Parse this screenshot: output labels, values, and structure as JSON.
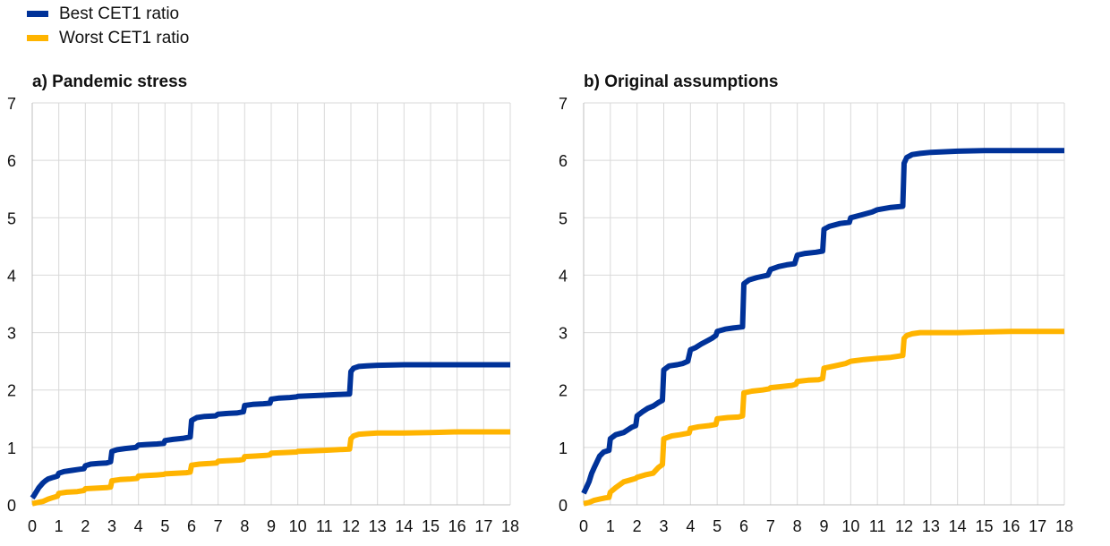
{
  "legend": {
    "items": [
      {
        "label": "Best CET1 ratio",
        "color": "#003299"
      },
      {
        "label": "Worst CET1 ratio",
        "color": "#ffb400"
      }
    ]
  },
  "chart_data": [
    {
      "type": "line",
      "title": "a) Pandemic stress",
      "xlim": [
        0,
        18
      ],
      "ylim": [
        0,
        7
      ],
      "xticks": [
        0,
        1,
        2,
        3,
        4,
        5,
        6,
        7,
        8,
        9,
        10,
        11,
        12,
        13,
        14,
        15,
        16,
        17,
        18
      ],
      "yticks": [
        0,
        1,
        2,
        3,
        4,
        5,
        6,
        7
      ],
      "grid": true,
      "legend_position": "top-left",
      "series": [
        {
          "name": "Best CET1 ratio",
          "color": "#003299",
          "x": [
            0,
            0.05,
            0.25,
            0.4,
            0.5,
            0.6,
            0.8,
            0.95,
            1.0,
            1.2,
            1.5,
            1.8,
            1.95,
            2.0,
            2.2,
            2.5,
            2.8,
            2.95,
            3.0,
            3.2,
            3.5,
            3.9,
            4.0,
            4.3,
            4.7,
            4.95,
            5.0,
            5.3,
            5.7,
            5.95,
            6.0,
            6.2,
            6.5,
            6.9,
            7.0,
            7.3,
            7.7,
            7.95,
            8.0,
            8.3,
            8.7,
            8.95,
            9.0,
            9.3,
            9.7,
            9.95,
            10.0,
            10.5,
            11.0,
            11.5,
            11.95,
            12.0,
            12.1,
            12.3,
            12.6,
            13.0,
            14.0,
            15.0,
            16.0,
            17.0,
            18.0
          ],
          "y": [
            0.12,
            0.15,
            0.3,
            0.38,
            0.42,
            0.45,
            0.48,
            0.5,
            0.55,
            0.58,
            0.6,
            0.62,
            0.63,
            0.68,
            0.71,
            0.72,
            0.73,
            0.75,
            0.93,
            0.96,
            0.98,
            1.0,
            1.04,
            1.05,
            1.06,
            1.07,
            1.12,
            1.14,
            1.16,
            1.18,
            1.47,
            1.52,
            1.54,
            1.55,
            1.58,
            1.59,
            1.6,
            1.62,
            1.73,
            1.75,
            1.76,
            1.77,
            1.84,
            1.86,
            1.87,
            1.88,
            1.89,
            1.9,
            1.91,
            1.92,
            1.93,
            2.32,
            2.38,
            2.41,
            2.42,
            2.43,
            2.44,
            2.44,
            2.44,
            2.44,
            2.44
          ]
        },
        {
          "name": "Worst CET1 ratio",
          "color": "#ffb400",
          "x": [
            0,
            0.2,
            0.4,
            0.6,
            0.8,
            0.95,
            1.0,
            1.3,
            1.7,
            1.95,
            2.0,
            2.4,
            2.8,
            2.95,
            3.0,
            3.3,
            3.7,
            3.95,
            4.0,
            4.3,
            4.7,
            4.95,
            5.0,
            5.4,
            5.8,
            5.95,
            6.0,
            6.3,
            6.7,
            6.95,
            7.0,
            7.4,
            7.8,
            7.95,
            8.0,
            8.4,
            8.8,
            8.95,
            9.0,
            9.5,
            9.95,
            10.0,
            10.5,
            11.0,
            11.5,
            11.95,
            12.0,
            12.1,
            12.3,
            12.6,
            13.0,
            14.0,
            15.0,
            16.0,
            17.0,
            18.0
          ],
          "y": [
            0.02,
            0.04,
            0.06,
            0.1,
            0.13,
            0.15,
            0.2,
            0.22,
            0.23,
            0.25,
            0.28,
            0.29,
            0.3,
            0.31,
            0.42,
            0.44,
            0.45,
            0.46,
            0.5,
            0.51,
            0.52,
            0.53,
            0.54,
            0.55,
            0.56,
            0.57,
            0.69,
            0.71,
            0.72,
            0.73,
            0.76,
            0.77,
            0.78,
            0.79,
            0.84,
            0.85,
            0.86,
            0.87,
            0.9,
            0.91,
            0.92,
            0.93,
            0.94,
            0.95,
            0.96,
            0.97,
            1.15,
            1.2,
            1.23,
            1.24,
            1.25,
            1.25,
            1.26,
            1.27,
            1.27,
            1.27
          ]
        }
      ]
    },
    {
      "type": "line",
      "title": "b) Original assumptions",
      "xlim": [
        0,
        18
      ],
      "ylim": [
        0,
        7
      ],
      "xticks": [
        0,
        1,
        2,
        3,
        4,
        5,
        6,
        7,
        8,
        9,
        10,
        11,
        12,
        13,
        14,
        15,
        16,
        17,
        18
      ],
      "yticks": [
        0,
        1,
        2,
        3,
        4,
        5,
        6,
        7
      ],
      "grid": true,
      "series": [
        {
          "name": "Best CET1 ratio",
          "color": "#003299",
          "x": [
            0,
            0.1,
            0.2,
            0.3,
            0.4,
            0.5,
            0.6,
            0.75,
            0.95,
            1.0,
            1.2,
            1.5,
            1.8,
            1.95,
            2.0,
            2.2,
            2.4,
            2.6,
            2.8,
            2.95,
            3.0,
            3.2,
            3.5,
            3.7,
            3.9,
            4.0,
            4.2,
            4.4,
            4.6,
            4.8,
            4.95,
            5.0,
            5.3,
            5.6,
            5.95,
            6.0,
            6.2,
            6.5,
            6.9,
            7.0,
            7.3,
            7.6,
            7.9,
            8.0,
            8.3,
            8.7,
            8.95,
            9.0,
            9.2,
            9.6,
            9.95,
            10.0,
            10.4,
            10.8,
            11.0,
            11.5,
            11.95,
            12.0,
            12.1,
            12.3,
            12.6,
            13.0,
            14.0,
            15.0,
            16.0,
            17.0,
            18.0
          ],
          "y": [
            0.2,
            0.3,
            0.4,
            0.55,
            0.65,
            0.75,
            0.85,
            0.92,
            0.95,
            1.15,
            1.22,
            1.26,
            1.35,
            1.38,
            1.55,
            1.62,
            1.68,
            1.72,
            1.78,
            1.82,
            2.35,
            2.42,
            2.44,
            2.46,
            2.5,
            2.7,
            2.74,
            2.8,
            2.85,
            2.9,
            2.95,
            3.02,
            3.06,
            3.08,
            3.1,
            3.85,
            3.92,
            3.96,
            4.0,
            4.1,
            4.15,
            4.18,
            4.2,
            4.35,
            4.38,
            4.4,
            4.42,
            4.8,
            4.85,
            4.9,
            4.92,
            5.0,
            5.05,
            5.1,
            5.14,
            5.18,
            5.2,
            5.95,
            6.05,
            6.1,
            6.12,
            6.14,
            6.16,
            6.17,
            6.17,
            6.17,
            6.17
          ]
        },
        {
          "name": "Worst CET1 ratio",
          "color": "#ffb400",
          "x": [
            0,
            0.2,
            0.4,
            0.6,
            0.8,
            0.95,
            1.0,
            1.2,
            1.5,
            1.8,
            1.95,
            2.0,
            2.3,
            2.6,
            2.8,
            2.95,
            3.0,
            3.3,
            3.6,
            3.95,
            4.0,
            4.3,
            4.7,
            4.95,
            5.0,
            5.4,
            5.8,
            5.95,
            6.0,
            6.3,
            6.7,
            6.95,
            7.0,
            7.4,
            7.8,
            7.95,
            8.0,
            8.4,
            8.8,
            8.95,
            9.0,
            9.4,
            9.8,
            10.0,
            10.5,
            11.0,
            11.5,
            11.95,
            12.0,
            12.1,
            12.3,
            12.6,
            13.0,
            14.0,
            15.0,
            16.0,
            17.0,
            18.0
          ],
          "y": [
            0.02,
            0.04,
            0.08,
            0.1,
            0.12,
            0.13,
            0.22,
            0.3,
            0.4,
            0.44,
            0.46,
            0.48,
            0.52,
            0.55,
            0.65,
            0.7,
            1.15,
            1.2,
            1.22,
            1.25,
            1.33,
            1.36,
            1.38,
            1.4,
            1.5,
            1.52,
            1.53,
            1.55,
            1.95,
            1.98,
            2.0,
            2.02,
            2.04,
            2.06,
            2.08,
            2.1,
            2.15,
            2.17,
            2.18,
            2.2,
            2.38,
            2.42,
            2.46,
            2.5,
            2.53,
            2.55,
            2.57,
            2.6,
            2.9,
            2.95,
            2.98,
            3.0,
            3.0,
            3.0,
            3.01,
            3.02,
            3.02,
            3.02
          ]
        }
      ]
    }
  ]
}
